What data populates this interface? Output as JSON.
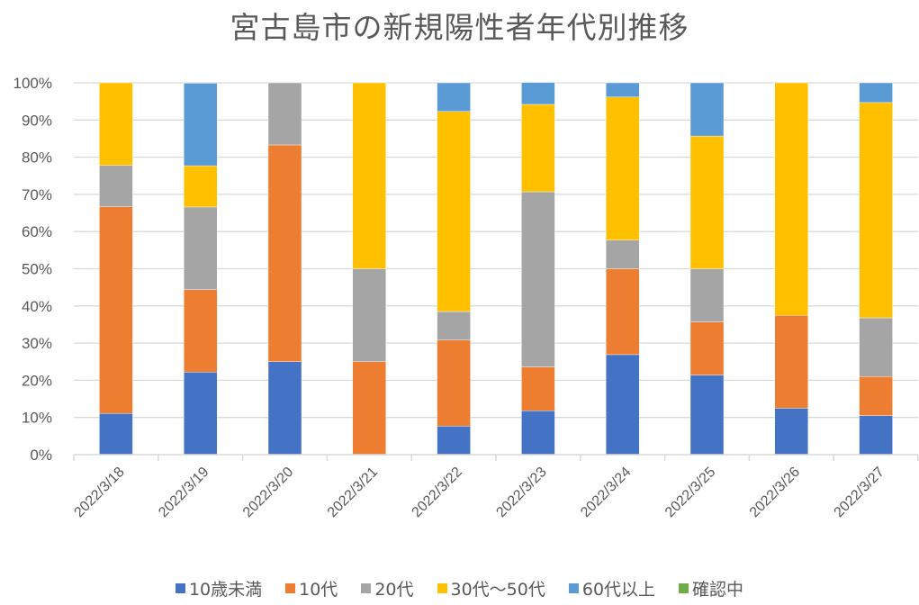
{
  "chart_data": {
    "type": "bar",
    "stacked": "percent",
    "title": "宮古島市の新規陽性者年代別推移",
    "xlabel": "",
    "ylabel": "",
    "ylim": [
      0,
      100
    ],
    "yticks": [
      "0%",
      "10%",
      "20%",
      "30%",
      "40%",
      "50%",
      "60%",
      "70%",
      "80%",
      "90%",
      "100%"
    ],
    "grid": true,
    "legend_position": "bottom",
    "categories": [
      "2022/3/18",
      "2022/3/19",
      "2022/3/20",
      "2022/3/21",
      "2022/3/22",
      "2022/3/23",
      "2022/3/24",
      "2022/3/25",
      "2022/3/26",
      "2022/3/27"
    ],
    "series": [
      {
        "name": "10歳未満",
        "color": "#4472C4",
        "values": [
          11.1,
          22.2,
          25.0,
          0,
          7.7,
          11.8,
          26.9,
          21.4,
          12.5,
          10.5
        ]
      },
      {
        "name": "10代",
        "color": "#ED7D31",
        "values": [
          55.6,
          22.2,
          58.3,
          25.0,
          23.1,
          11.8,
          23.1,
          14.3,
          25.0,
          10.5
        ]
      },
      {
        "name": "20代",
        "color": "#A5A5A5",
        "values": [
          11.1,
          22.2,
          16.7,
          25.0,
          7.7,
          47.1,
          7.7,
          14.3,
          0,
          15.8
        ]
      },
      {
        "name": "30代〜50代",
        "color": "#FFC000",
        "values": [
          22.2,
          11.1,
          0,
          50.0,
          53.8,
          23.5,
          38.5,
          35.7,
          62.5,
          57.9
        ]
      },
      {
        "name": "60代以上",
        "color": "#5B9BD5",
        "values": [
          0,
          22.2,
          0,
          0,
          7.7,
          5.9,
          3.8,
          14.3,
          0,
          5.3
        ]
      },
      {
        "name": "確認中",
        "color": "#70AD47",
        "values": [
          0,
          0,
          0,
          0,
          0,
          0,
          0,
          0,
          0,
          0
        ]
      }
    ]
  }
}
